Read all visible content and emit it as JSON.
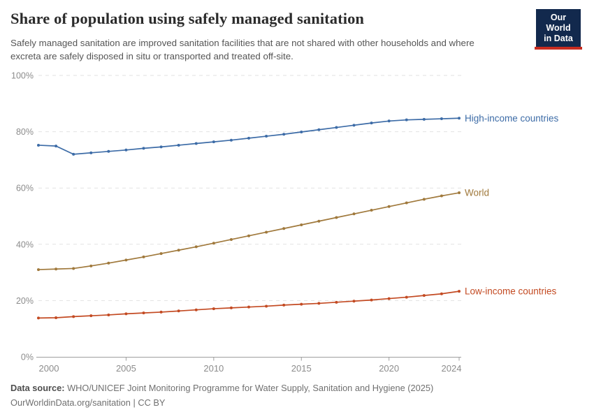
{
  "header": {
    "title": "Share of population using safely managed sanitation",
    "subtitle": "Safely managed sanitation are improved sanitation facilities that are not shared with other households and where excreta are safely disposed in situ or transported and treated off-site.",
    "logo": {
      "line1": "Our World",
      "line2": "in Data"
    }
  },
  "chart_data": {
    "type": "line",
    "title": "Share of population using safely managed sanitation",
    "subtitle": "Safely managed sanitation are improved sanitation facilities that are not shared with other households and where excreta are safely disposed in situ or transported and treated off-site.",
    "xlabel": "",
    "ylabel": "",
    "ylim": [
      0,
      100
    ],
    "grid": "horizontal-dashed",
    "legend_position": "end-of-line",
    "x": [
      2000,
      2001,
      2002,
      2003,
      2004,
      2005,
      2006,
      2007,
      2008,
      2009,
      2010,
      2011,
      2012,
      2013,
      2014,
      2015,
      2016,
      2017,
      2018,
      2019,
      2020,
      2021,
      2022,
      2023,
      2024
    ],
    "series": [
      {
        "name": "High-income countries",
        "color": "#3D6CA7",
        "values": [
          75.2,
          74.9,
          72.0,
          72.5,
          73.0,
          73.5,
          74.1,
          74.6,
          75.2,
          75.8,
          76.4,
          77.0,
          77.7,
          78.4,
          79.1,
          79.9,
          80.7,
          81.5,
          82.3,
          83.1,
          83.8,
          84.2,
          84.4,
          84.6,
          84.8
        ]
      },
      {
        "name": "World",
        "color": "#A0793C",
        "values": [
          31.0,
          31.2,
          31.4,
          32.3,
          33.3,
          34.4,
          35.5,
          36.7,
          37.9,
          39.1,
          40.4,
          41.7,
          43.0,
          44.3,
          45.6,
          46.9,
          48.2,
          49.5,
          50.8,
          52.1,
          53.4,
          54.7,
          56.0,
          57.2,
          58.3
        ]
      },
      {
        "name": "Low-income countries",
        "color": "#C34A22",
        "values": [
          13.8,
          13.9,
          14.3,
          14.6,
          14.9,
          15.3,
          15.6,
          15.9,
          16.3,
          16.7,
          17.1,
          17.4,
          17.7,
          18.0,
          18.4,
          18.7,
          19.0,
          19.4,
          19.8,
          20.2,
          20.7,
          21.2,
          21.8,
          22.4,
          23.3
        ]
      }
    ],
    "yticks": [
      {
        "value": 0,
        "label": "0%"
      },
      {
        "value": 20,
        "label": "20%"
      },
      {
        "value": 40,
        "label": "40%"
      },
      {
        "value": 60,
        "label": "60%"
      },
      {
        "value": 80,
        "label": "80%"
      },
      {
        "value": 100,
        "label": "100%"
      }
    ],
    "xticks": [
      {
        "year": 2000,
        "label": "2000"
      },
      {
        "year": 2005,
        "label": "2005"
      },
      {
        "year": 2010,
        "label": "2010"
      },
      {
        "year": 2015,
        "label": "2015"
      },
      {
        "year": 2020,
        "label": "2020"
      },
      {
        "year": 2024,
        "label": "2024"
      }
    ]
  },
  "colors": {
    "grid": "#E2E2E2",
    "axis": "#9E9E9E",
    "tick_text": "#8C8C8C",
    "logo_bg": "#12294D",
    "logo_bar": "#C82C20"
  },
  "footer": {
    "data_source_label": "Data source:",
    "data_source_text": " WHO/UNICEF Joint Monitoring Programme for Water Supply, Sanitation and Hygiene (2025)",
    "url": "OurWorldinData.org/sanitation",
    "separator": " | ",
    "license": "CC BY"
  }
}
